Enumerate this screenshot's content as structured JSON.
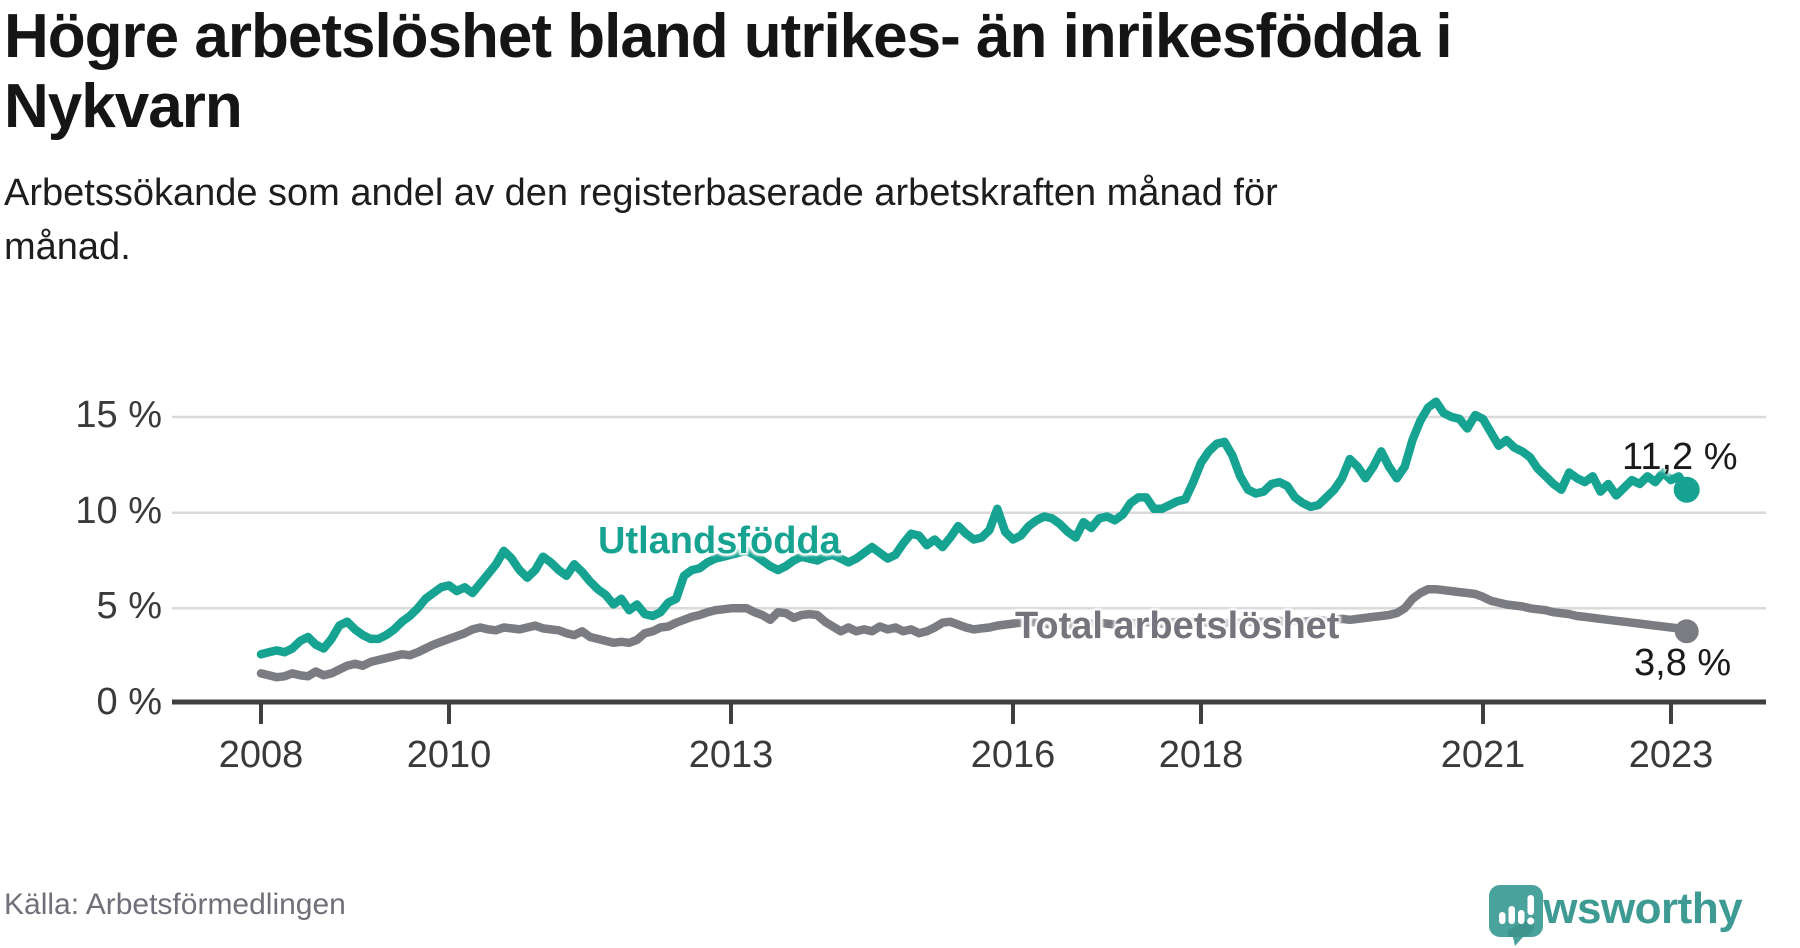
{
  "title": [
    "Högre arbetslöshet bland utrikes- än inrikesfödda i",
    "Nykvarn"
  ],
  "subtitle": [
    "Arbetssökande som andel av den registerbaserade arbetskraften månad för",
    "månad."
  ],
  "source": "Källa: Arbetsförmedlingen",
  "logo": {
    "text": "Newsworthy",
    "icon": "bar-chart-speech-bubble-icon",
    "icon_color": "#49a29c",
    "text_color": "#3d9b94"
  },
  "colors": {
    "utlandsfodda": "#17a392",
    "total": "#7b7b82",
    "grid": "#dadada",
    "axis": "#3f3f3f"
  },
  "end_labels": {
    "utlandsfodda": "11,2 %",
    "total": "3,8 %"
  },
  "chart_data": {
    "type": "line",
    "title": "Högre arbetslöshet bland utrikes- än inrikesfödda i Nykvarn",
    "subtitle": "Arbetssökande som andel av den registerbaserade arbetskraften månad för månad.",
    "x_start": "2008-01",
    "x_end": "2023-03",
    "frequency": "monthly",
    "ylim": [
      0,
      16.5
    ],
    "grid": "horizontal",
    "y_tick_values": [
      15,
      10,
      5,
      0
    ],
    "y_tick_labels": [
      "15 %",
      "10 %",
      "5 %",
      "0 %"
    ],
    "x_tick_years": [
      2008,
      2010,
      2013,
      2016,
      2018,
      2021,
      2023
    ],
    "x_tick_labels": [
      "2008",
      "2010",
      "2013",
      "2016",
      "2018",
      "2021",
      "2023"
    ],
    "legend_position": "inline-labels",
    "series": [
      {
        "name": "Utlandsfödda",
        "color": "#17a392",
        "last_value_label": "11,2 %",
        "values": [
          2.6,
          2.7,
          2.8,
          2.7,
          2.9,
          3.3,
          3.5,
          3.1,
          2.9,
          3.4,
          4.1,
          4.3,
          3.9,
          3.6,
          3.4,
          3.4,
          3.6,
          3.9,
          4.3,
          4.6,
          5.0,
          5.5,
          5.8,
          6.1,
          6.2,
          5.9,
          6.1,
          5.8,
          6.3,
          6.8,
          7.3,
          8.0,
          7.6,
          7.0,
          6.6,
          7.0,
          7.7,
          7.4,
          7.0,
          6.7,
          7.3,
          6.9,
          6.4,
          6.0,
          5.7,
          5.2,
          5.5,
          4.9,
          5.2,
          4.7,
          4.6,
          4.8,
          5.3,
          5.5,
          6.7,
          7.0,
          7.1,
          7.4,
          7.6,
          7.7,
          7.8,
          7.9,
          8.0,
          7.8,
          7.5,
          7.2,
          7.0,
          7.2,
          7.5,
          7.7,
          7.6,
          7.5,
          7.7,
          7.8,
          7.6,
          7.4,
          7.6,
          7.9,
          8.2,
          7.9,
          7.6,
          7.8,
          8.4,
          8.9,
          8.8,
          8.3,
          8.6,
          8.2,
          8.7,
          9.3,
          8.9,
          8.6,
          8.7,
          9.1,
          10.2,
          9.0,
          8.6,
          8.8,
          9.3,
          9.6,
          9.8,
          9.7,
          9.4,
          9.0,
          8.7,
          9.5,
          9.2,
          9.7,
          9.8,
          9.6,
          9.9,
          10.5,
          10.8,
          10.8,
          10.2,
          10.2,
          10.4,
          10.6,
          10.7,
          11.6,
          12.6,
          13.2,
          13.6,
          13.7,
          13.0,
          11.9,
          11.2,
          11.0,
          11.1,
          11.5,
          11.6,
          11.4,
          10.8,
          10.5,
          10.3,
          10.4,
          10.8,
          11.2,
          11.8,
          12.8,
          12.4,
          11.8,
          12.4,
          13.2,
          12.4,
          11.8,
          12.4,
          13.8,
          14.8,
          15.5,
          15.8,
          15.2,
          15.0,
          14.9,
          14.4,
          15.1,
          14.9,
          14.2,
          13.5,
          13.8,
          13.4,
          13.2,
          12.9,
          12.3,
          11.9,
          11.5,
          11.2,
          12.1,
          11.8,
          11.6,
          11.9,
          11.1,
          11.5,
          10.9,
          11.3,
          11.7,
          11.5,
          11.9,
          11.6,
          12.1,
          11.7,
          11.9,
          11.2
        ]
      },
      {
        "name": "Total arbetslöshet",
        "color": "#7b7b82",
        "last_value_label": "3,8 %",
        "values": [
          1.6,
          1.5,
          1.4,
          1.45,
          1.6,
          1.5,
          1.45,
          1.7,
          1.5,
          1.6,
          1.8,
          2.0,
          2.1,
          2.0,
          2.2,
          2.3,
          2.4,
          2.5,
          2.6,
          2.55,
          2.7,
          2.9,
          3.1,
          3.25,
          3.4,
          3.55,
          3.7,
          3.9,
          4.0,
          3.9,
          3.85,
          4.0,
          3.95,
          3.9,
          4.0,
          4.1,
          3.95,
          3.9,
          3.85,
          3.7,
          3.6,
          3.8,
          3.5,
          3.4,
          3.3,
          3.2,
          3.25,
          3.2,
          3.35,
          3.7,
          3.8,
          4.0,
          4.05,
          4.25,
          4.4,
          4.55,
          4.65,
          4.8,
          4.9,
          4.95,
          5.0,
          5.0,
          5.0,
          4.8,
          4.65,
          4.4,
          4.8,
          4.75,
          4.5,
          4.65,
          4.7,
          4.65,
          4.3,
          4.05,
          3.8,
          4.0,
          3.8,
          3.9,
          3.8,
          4.05,
          3.9,
          4.0,
          3.8,
          3.9,
          3.7,
          3.8,
          4.0,
          4.25,
          4.3,
          4.15,
          4.0,
          3.9,
          3.95,
          4.0,
          4.1,
          4.15,
          4.2,
          4.25,
          4.3,
          4.25,
          4.2,
          4.15,
          4.1,
          4.1,
          4.15,
          4.2,
          4.2,
          4.25,
          4.2,
          4.15,
          4.2,
          4.25,
          4.2,
          4.3,
          4.25,
          4.2,
          4.25,
          4.3,
          4.25,
          4.3,
          4.3,
          4.25,
          4.3,
          4.25,
          4.2,
          4.25,
          4.3,
          4.25,
          4.3,
          4.3,
          4.35,
          4.3,
          4.35,
          4.3,
          4.35,
          4.4,
          4.35,
          4.4,
          4.45,
          4.4,
          4.45,
          4.5,
          4.55,
          4.6,
          4.65,
          4.75,
          5.0,
          5.5,
          5.8,
          6.0,
          6.0,
          5.95,
          5.9,
          5.85,
          5.8,
          5.75,
          5.6,
          5.4,
          5.3,
          5.2,
          5.15,
          5.1,
          5.0,
          4.95,
          4.9,
          4.8,
          4.75,
          4.7,
          4.6,
          4.55,
          4.5,
          4.45,
          4.4,
          4.35,
          4.3,
          4.25,
          4.2,
          4.15,
          4.1,
          4.05,
          4.0,
          3.95,
          3.8
        ]
      }
    ]
  }
}
